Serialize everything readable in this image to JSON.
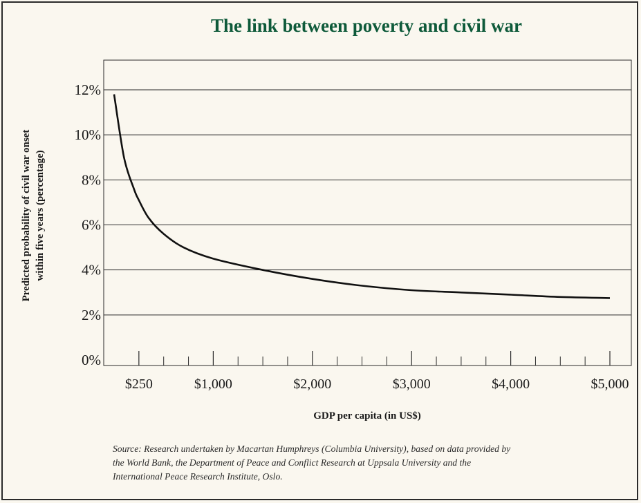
{
  "chart_data": {
    "type": "line",
    "title": "The link between poverty and civil war",
    "xlabel": "GDP per capita (in US$)",
    "ylabel_lines": [
      "Predicted probability of civil war onset",
      "within five years (percentage)"
    ],
    "xlim": [
      0,
      5000
    ],
    "ylim": [
      0,
      12
    ],
    "x_ticks": [
      250,
      1000,
      2000,
      3000,
      4000,
      5000
    ],
    "x_tick_labels": [
      "$250",
      "$1,000",
      "$2,000",
      "$3,000",
      "$4,000",
      "$5,000"
    ],
    "x_minor_ticks": [
      500,
      750,
      1250,
      1500,
      1750,
      2250,
      2500,
      2750,
      3250,
      3500,
      3750,
      4250,
      4500,
      4750
    ],
    "y_ticks": [
      0,
      2,
      4,
      6,
      8,
      10,
      12
    ],
    "y_tick_labels": [
      "0%",
      "2%",
      "4%",
      "6%",
      "8%",
      "10%",
      "12%"
    ],
    "grid": "horizontal",
    "series": [
      {
        "x": [
          0,
          100,
          200,
          250,
          350,
          500,
          700,
          1000,
          1500,
          2000,
          2500,
          3000,
          3500,
          4000,
          4500,
          5000
        ],
        "values": [
          11.8,
          9.0,
          7.6,
          7.1,
          6.3,
          5.6,
          5.0,
          4.5,
          4.0,
          3.6,
          3.3,
          3.1,
          3.0,
          2.9,
          2.8,
          2.75
        ]
      }
    ]
  },
  "source_lines": [
    "Source: Research undertaken by Macartan Humphreys (Columbia University), based on data provided by",
    "the World Bank, the Department of Peace and Conflict Research at Uppsala University and the",
    "International Peace Research Institute, Oslo."
  ]
}
